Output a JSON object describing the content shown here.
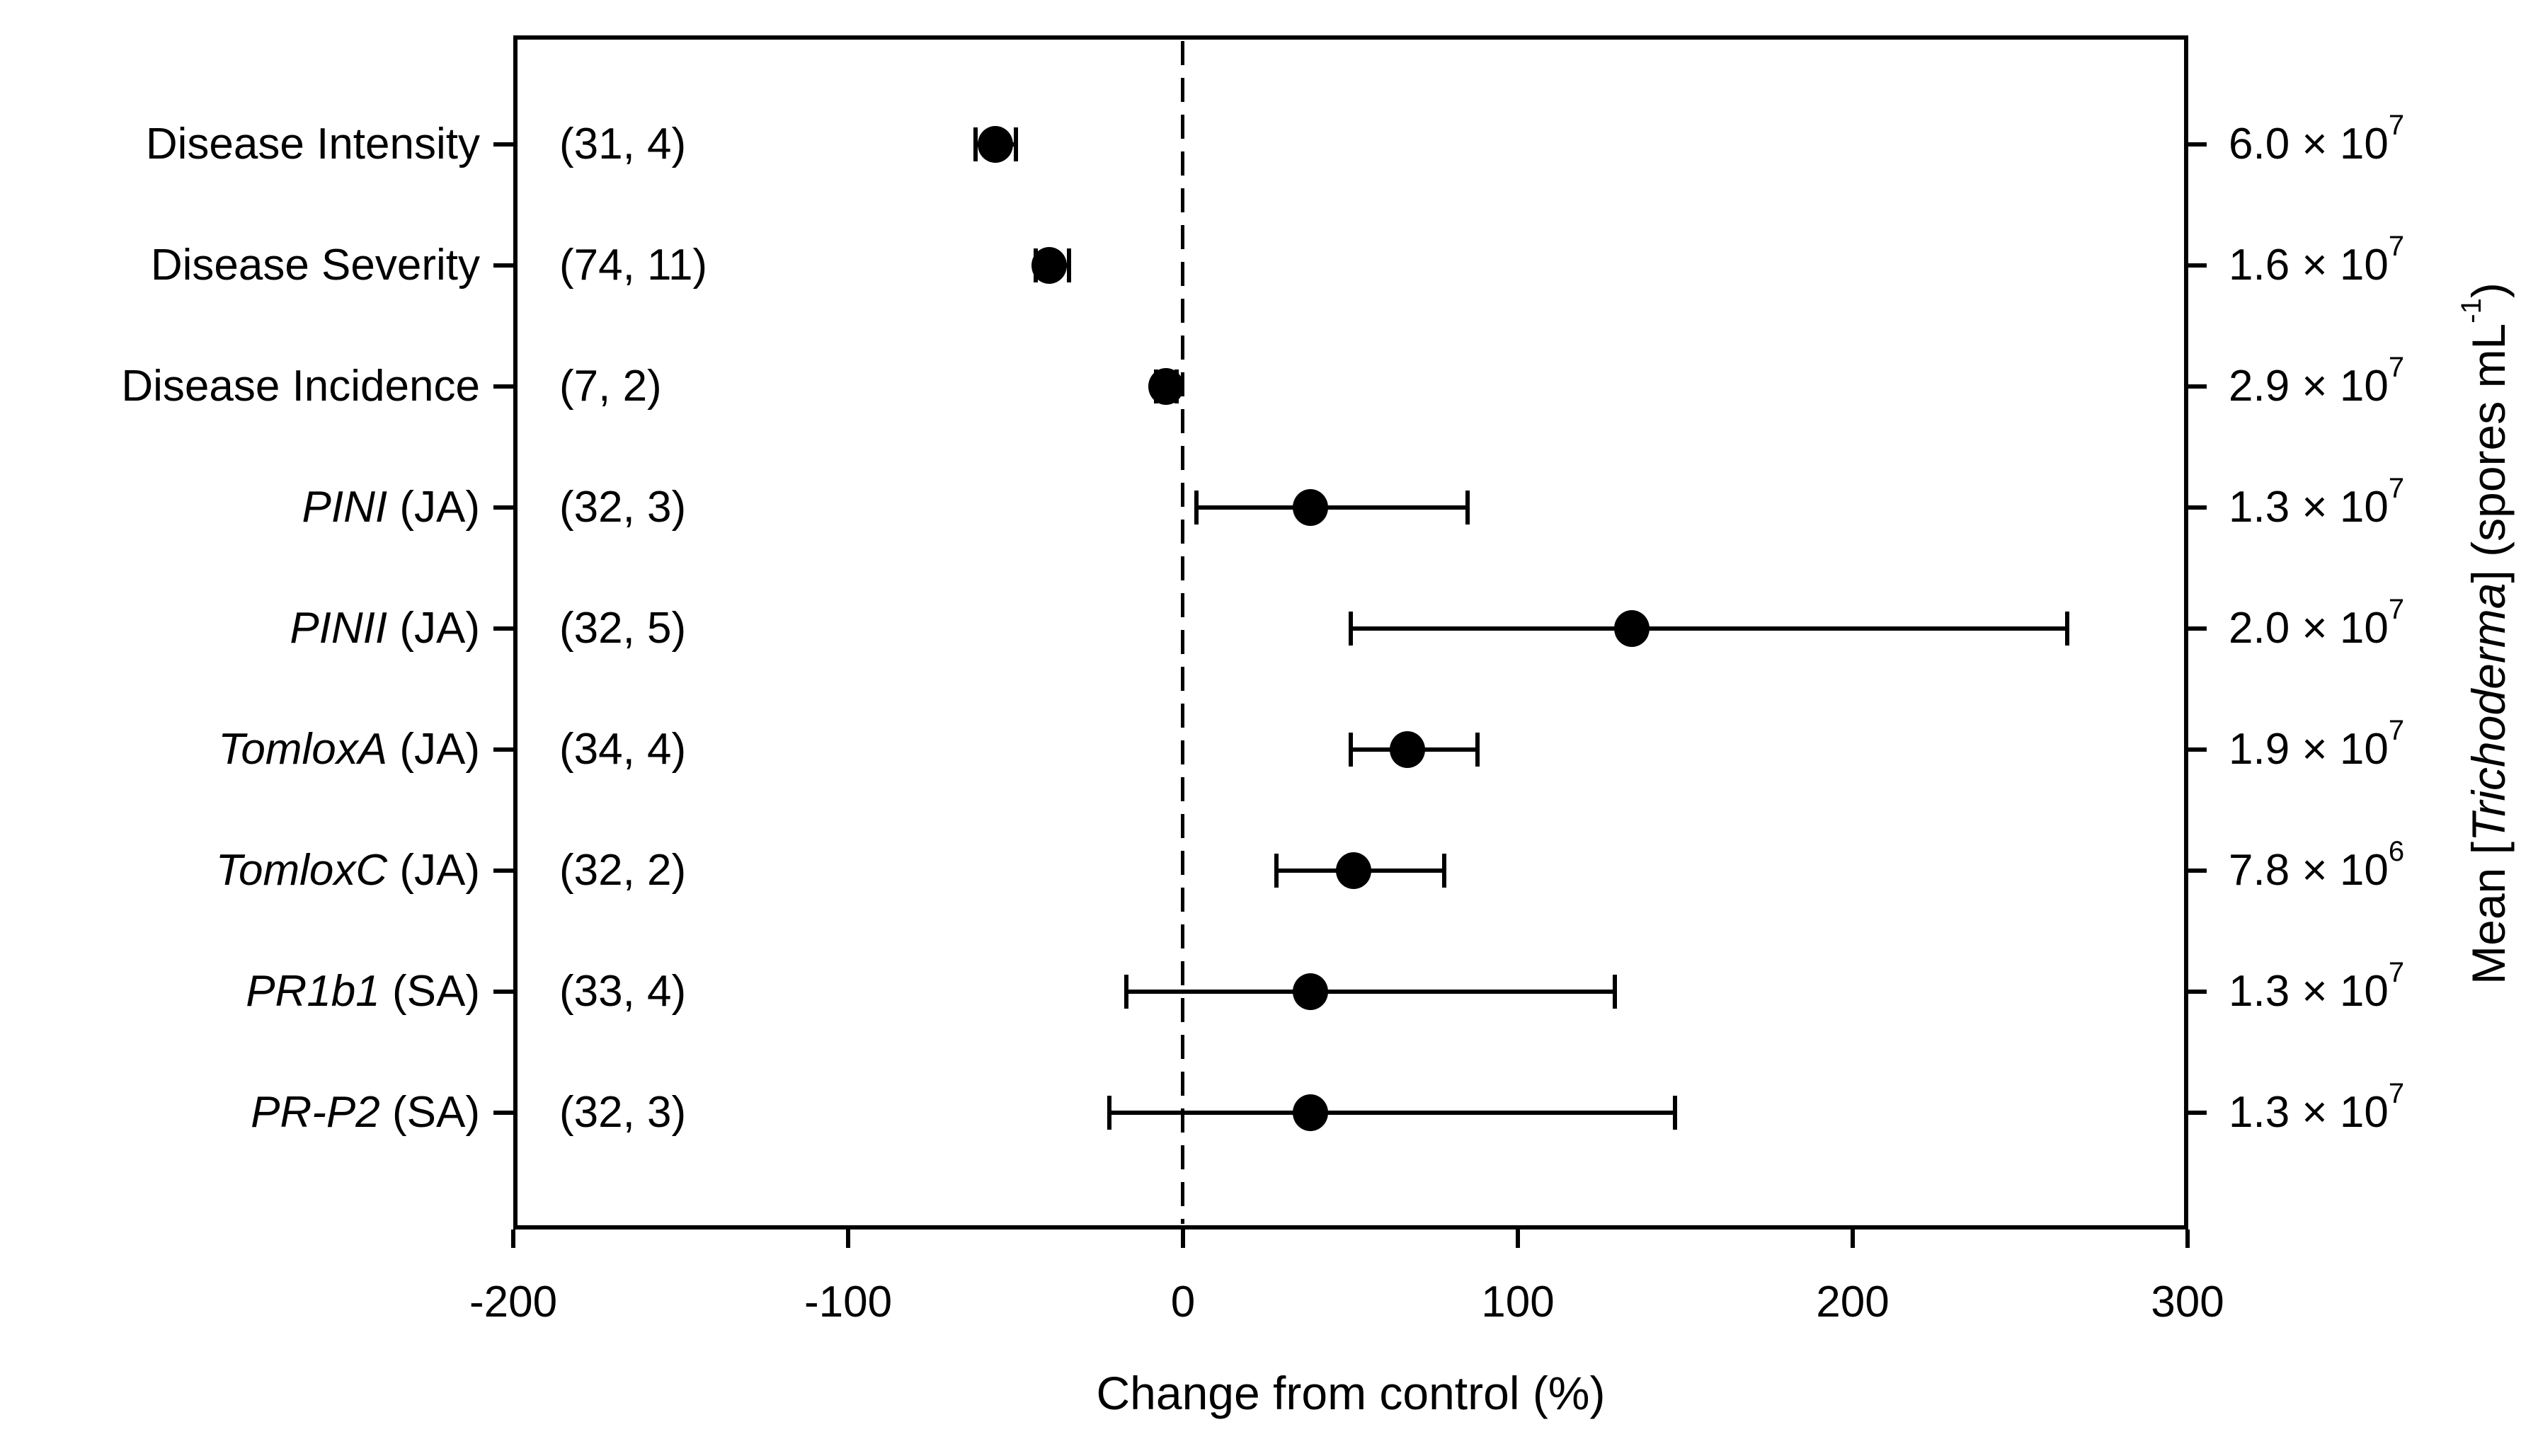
{
  "chart_data": {
    "type": "scatter",
    "subtype": "forest-dot-plot-with-error-bars",
    "xlabel": "Change from control (%)",
    "xlim": [
      -200,
      300
    ],
    "xticks": [
      "-200",
      "-100",
      "0",
      "100",
      "200",
      "300"
    ],
    "xtick_values": [
      -200,
      -100,
      0,
      100,
      200,
      300
    ],
    "zero_reference_line": true,
    "grid": false,
    "legend": false,
    "marker_color": "#000000",
    "right_axis_title": {
      "prefix": "Mean [",
      "italic": "Trichoderma",
      "middle": "] (spores mL",
      "sup": "-1",
      "suffix": ")"
    },
    "rows": [
      {
        "em": "",
        "label": "Disease Intensity",
        "n": "(31, 4)",
        "value": -56,
        "lo": -62,
        "hi": -50,
        "conc_coeff": "6.0",
        "conc_base": " × 10",
        "conc_exp": "7"
      },
      {
        "em": "",
        "label": "Disease Severity",
        "n": "(74, 11)",
        "value": -40,
        "lo": -44,
        "hi": -34,
        "conc_coeff": "1.6",
        "conc_base": " × 10",
        "conc_exp": "7"
      },
      {
        "em": "",
        "label": "Disease Incidence",
        "n": "(7, 2)",
        "value": -5,
        "lo": -8,
        "hi": -2,
        "conc_coeff": "2.9",
        "conc_base": " × 10",
        "conc_exp": "7"
      },
      {
        "em": "PINI",
        "label": " (JA)",
        "n": "(32, 3)",
        "value": 38,
        "lo": 4,
        "hi": 85,
        "conc_coeff": "1.3",
        "conc_base": " × 10",
        "conc_exp": "7"
      },
      {
        "em": "PINII",
        "label": " (JA)",
        "n": "(32, 5)",
        "value": 134,
        "lo": 50,
        "hi": 264,
        "conc_coeff": "2.0",
        "conc_base": " × 10",
        "conc_exp": "7"
      },
      {
        "em": "TomloxA",
        "label": " (JA)",
        "n": "(34, 4)",
        "value": 67,
        "lo": 50,
        "hi": 88,
        "conc_coeff": "1.9",
        "conc_base": " × 10",
        "conc_exp": "7"
      },
      {
        "em": "TomloxC",
        "label": " (JA)",
        "n": "(32, 2)",
        "value": 51,
        "lo": 28,
        "hi": 78,
        "conc_coeff": "7.8",
        "conc_base": " × 10",
        "conc_exp": "6"
      },
      {
        "em": "PR1b1",
        "label": " (SA)",
        "n": "(33, 4)",
        "value": 38,
        "lo": -17,
        "hi": 129,
        "conc_coeff": "1.3",
        "conc_base": " × 10",
        "conc_exp": "7"
      },
      {
        "em": "PR-P2",
        "label": " (SA)",
        "n": "(32, 3)",
        "value": 38,
        "lo": -22,
        "hi": 147,
        "conc_coeff": "1.3",
        "conc_base": " × 10",
        "conc_exp": "7"
      }
    ]
  }
}
